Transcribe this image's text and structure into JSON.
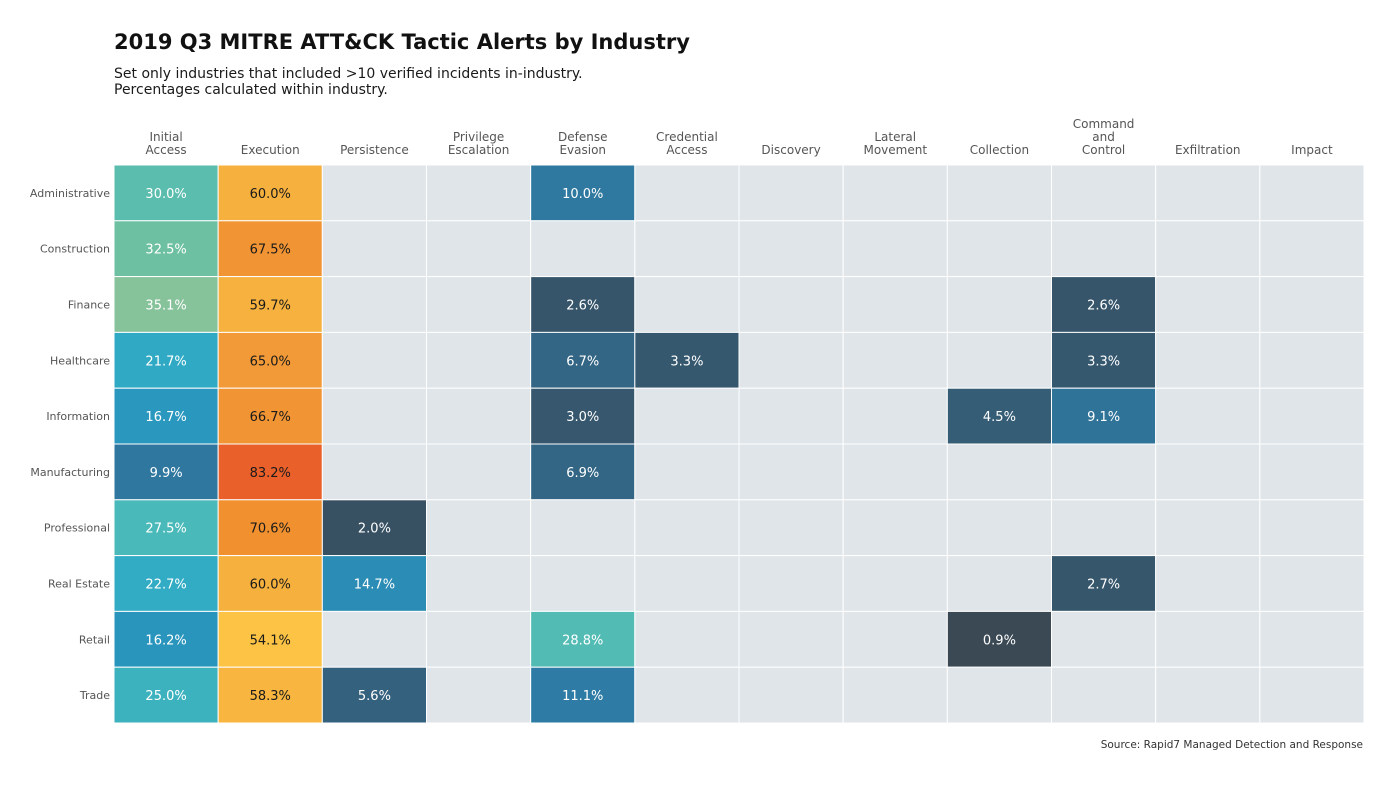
{
  "chart_data": {
    "type": "heatmap",
    "title": "2019 Q3 MITRE ATT&CK Tactic Alerts by Industry",
    "subtitle": [
      "Set only industries that included >10 verified incidents in-industry.",
      "Percentages calculated within industry."
    ],
    "caption": "Source: Rapid7 Managed Detection and Response",
    "columns": [
      [
        "Initial",
        "Access"
      ],
      [
        "Execution"
      ],
      [
        "Persistence"
      ],
      [
        "Privilege",
        "Escalation"
      ],
      [
        "Defense",
        "Evasion"
      ],
      [
        "Credential",
        "Access"
      ],
      [
        "Discovery"
      ],
      [
        "Lateral",
        "Movement"
      ],
      [
        "Collection"
      ],
      [
        "Command",
        "and",
        "Control"
      ],
      [
        "Exfiltration"
      ],
      [
        "Impact"
      ]
    ],
    "rows": [
      "Administrative",
      "Construction",
      "Finance",
      "Healthcare",
      "Information",
      "Manufacturing",
      "Professional",
      "Real Estate",
      "Retail",
      "Trade"
    ],
    "values": [
      [
        30.0,
        60.0,
        null,
        null,
        10.0,
        null,
        null,
        null,
        null,
        null,
        null,
        null
      ],
      [
        32.5,
        67.5,
        null,
        null,
        null,
        null,
        null,
        null,
        null,
        null,
        null,
        null
      ],
      [
        35.1,
        59.7,
        null,
        null,
        2.6,
        null,
        null,
        null,
        null,
        2.6,
        null,
        null
      ],
      [
        21.7,
        65.0,
        null,
        null,
        6.7,
        3.3,
        null,
        null,
        null,
        3.3,
        null,
        null
      ],
      [
        16.7,
        66.7,
        null,
        null,
        3.0,
        null,
        null,
        null,
        4.5,
        9.1,
        null,
        null
      ],
      [
        9.9,
        83.2,
        null,
        null,
        6.9,
        null,
        null,
        null,
        null,
        null,
        null,
        null
      ],
      [
        27.5,
        70.6,
        2.0,
        null,
        null,
        null,
        null,
        null,
        null,
        null,
        null,
        null
      ],
      [
        22.7,
        60.0,
        14.7,
        null,
        null,
        null,
        null,
        null,
        null,
        2.7,
        null,
        null
      ],
      [
        16.2,
        54.1,
        null,
        null,
        28.8,
        null,
        null,
        null,
        0.9,
        null,
        null,
        null
      ],
      [
        25.0,
        58.3,
        5.6,
        null,
        11.1,
        null,
        null,
        null,
        null,
        null,
        null,
        null
      ]
    ],
    "value_format": "percent_one_decimal",
    "empty_color": "#dfe5e8",
    "color_scale": [
      [
        0.0,
        "#3d4247"
      ],
      [
        2.5,
        "#36556a"
      ],
      [
        7.0,
        "#336686"
      ],
      [
        10.0,
        "#2f78a0"
      ],
      [
        14.0,
        "#2b88b2"
      ],
      [
        18.0,
        "#2aa0c4"
      ],
      [
        23.0,
        "#32adc4"
      ],
      [
        28.0,
        "#4dbab8"
      ],
      [
        32.0,
        "#68bfa4"
      ],
      [
        36.0,
        "#8fc397"
      ],
      [
        54.0,
        "#fdc344"
      ],
      [
        60.0,
        "#f6b03e"
      ],
      [
        66.0,
        "#f19535"
      ],
      [
        71.0,
        "#f0902f"
      ],
      [
        83.0,
        "#e9602a"
      ]
    ]
  }
}
